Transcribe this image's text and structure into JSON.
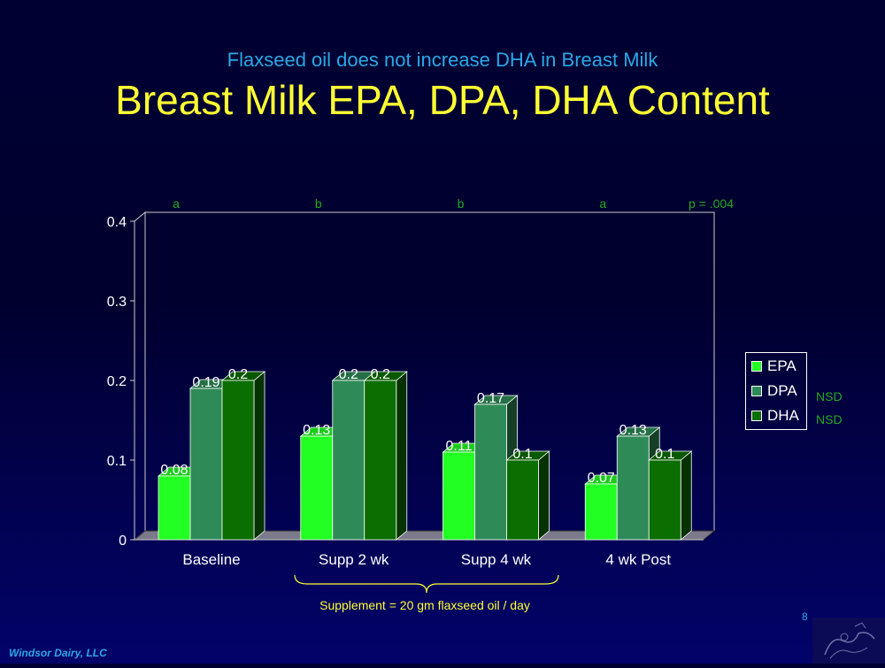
{
  "slide": {
    "subtitle": "Flaxseed oil does not increase DHA in Breast Milk",
    "title": "Breast Milk EPA, DPA, DHA Content",
    "footer_left": "Windsor Dairy, LLC",
    "page_number": "8",
    "supplement_note": "Supplement = 20 gm flaxseed oil / day",
    "colors": {
      "background": "#000033",
      "subtitle": "#2aa8e6",
      "title": "#ffff33",
      "annotation": "#22aa22"
    }
  },
  "legend": {
    "items": [
      {
        "label": "EPA",
        "note": ""
      },
      {
        "label": "DPA",
        "note": "NSD"
      },
      {
        "label": "DHA",
        "note": "NSD"
      }
    ]
  },
  "chart_data": {
    "type": "bar",
    "title": "Breast Milk EPA, DPA, DHA Content",
    "categories": [
      "Baseline",
      "Supp 2 wk",
      "Supp 4 wk",
      "4 wk Post"
    ],
    "series": [
      {
        "name": "EPA",
        "values": [
          0.08,
          0.13,
          0.11,
          0.07
        ],
        "labels": [
          "0.08",
          "0.13",
          "0.11",
          "0.07"
        ],
        "color": "#22ff22"
      },
      {
        "name": "DPA",
        "values": [
          0.19,
          0.2,
          0.17,
          0.13
        ],
        "labels": [
          "0.19",
          "0.2",
          "0.17",
          "0.13"
        ],
        "color": "#2e8b57"
      },
      {
        "name": "DHA",
        "values": [
          0.2,
          0.2,
          0.1,
          0.1
        ],
        "labels": [
          "0.2",
          "0.2",
          "0.1",
          "0.1"
        ],
        "color": "#0a6e00"
      }
    ],
    "ylim": [
      0,
      0.4
    ],
    "yticks": [
      "0",
      "0.1",
      "0.2",
      "0.3",
      "0.4"
    ],
    "grid": false,
    "legend_position": "right",
    "significance_letters": [
      "a",
      "b",
      "b",
      "a"
    ],
    "p_value": "p = .004"
  }
}
